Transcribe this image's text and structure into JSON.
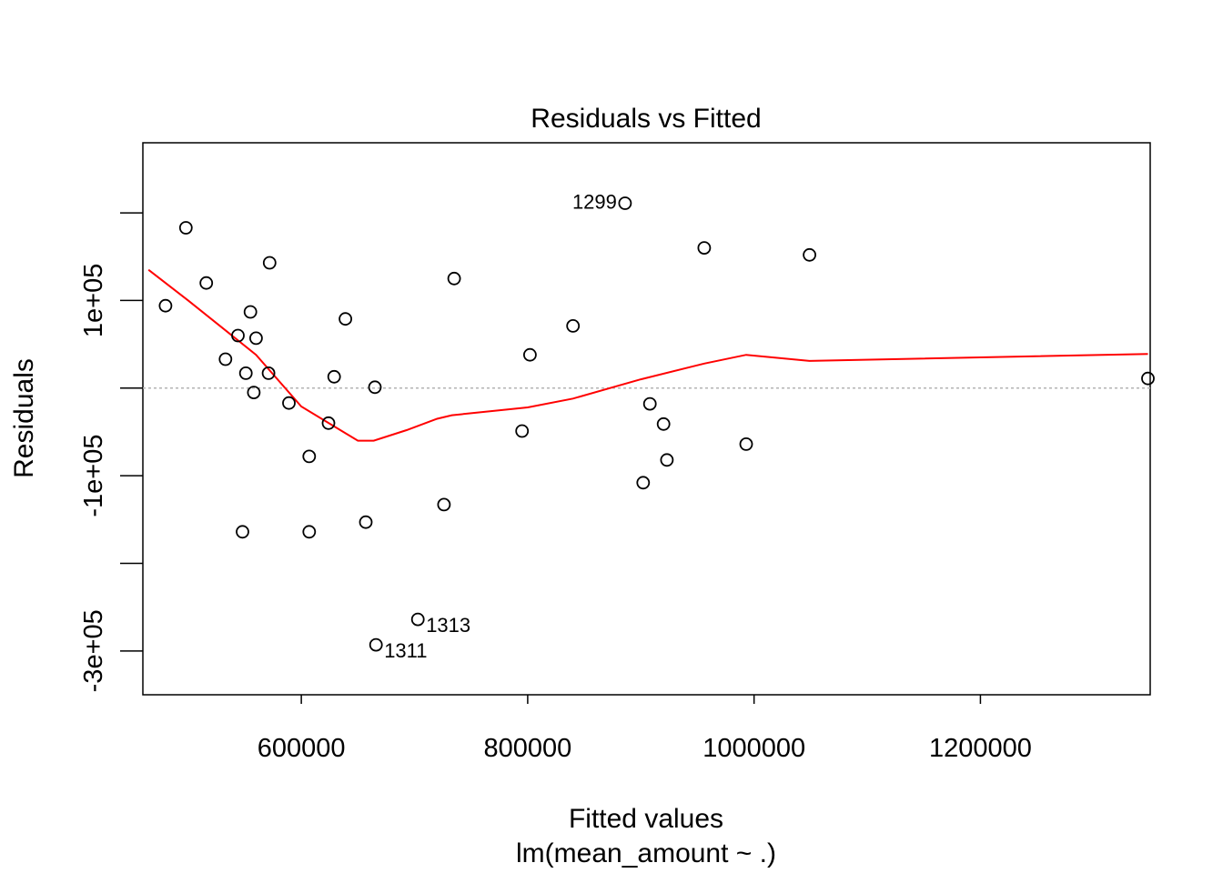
{
  "chart_data": {
    "type": "scatter",
    "title": "Residuals vs Fitted",
    "xlabel": "Fitted values",
    "subtitle": "lm(mean_amount ~ .)",
    "ylabel": "Residuals",
    "xlim": [
      460000,
      1350000
    ],
    "ylim": [
      -350000,
      280000
    ],
    "x_ticks": [
      600000,
      800000,
      1000000,
      1200000
    ],
    "x_tick_labels": [
      "600000",
      "800000",
      "1000000",
      "1200000"
    ],
    "y_ticks": [
      -300000,
      -200000,
      -100000,
      0,
      100000,
      200000
    ],
    "y_tick_labels": {
      "-300000": "-3e+05",
      "-100000": "-1e+05",
      "100000": "1e+05"
    },
    "zero_line": true,
    "points": [
      {
        "x": 480000,
        "y": 94000
      },
      {
        "x": 498000,
        "y": 183000
      },
      {
        "x": 516000,
        "y": 120000
      },
      {
        "x": 533000,
        "y": 33000
      },
      {
        "x": 544000,
        "y": 60000
      },
      {
        "x": 548000,
        "y": -164000
      },
      {
        "x": 551000,
        "y": 17000
      },
      {
        "x": 555000,
        "y": 87000
      },
      {
        "x": 558000,
        "y": -5000
      },
      {
        "x": 560000,
        "y": 57000
      },
      {
        "x": 571000,
        "y": 17000
      },
      {
        "x": 572000,
        "y": 143000
      },
      {
        "x": 589000,
        "y": -17000
      },
      {
        "x": 607000,
        "y": -78000
      },
      {
        "x": 607000,
        "y": -164000
      },
      {
        "x": 624000,
        "y": -40000
      },
      {
        "x": 629000,
        "y": 13000
      },
      {
        "x": 639000,
        "y": 79000
      },
      {
        "x": 657000,
        "y": -153000
      },
      {
        "x": 665000,
        "y": 1000
      },
      {
        "x": 666000,
        "y": -293000,
        "label": "1311"
      },
      {
        "x": 703000,
        "y": -264000,
        "label": "1313"
      },
      {
        "x": 726000,
        "y": -133000
      },
      {
        "x": 735000,
        "y": 125000
      },
      {
        "x": 795000,
        "y": -49000
      },
      {
        "x": 802000,
        "y": 38000
      },
      {
        "x": 840000,
        "y": 71000
      },
      {
        "x": 886000,
        "y": 211000,
        "label": "1299"
      },
      {
        "x": 902000,
        "y": -108000
      },
      {
        "x": 908000,
        "y": -18000
      },
      {
        "x": 920000,
        "y": -41000
      },
      {
        "x": 923000,
        "y": -82000
      },
      {
        "x": 956000,
        "y": 160000
      },
      {
        "x": 993000,
        "y": -64000
      },
      {
        "x": 1049000,
        "y": 152000
      },
      {
        "x": 1348000,
        "y": 11000
      }
    ],
    "series": [
      {
        "color": "#ff0000",
        "x": [
          465000,
          500000,
          530000,
          560000,
          600000,
          650000,
          664000,
          693000,
          720000,
          733000,
          800000,
          840000,
          900000,
          956000,
          993000,
          1049000,
          1348000
        ],
        "y": [
          135000,
          100000,
          69000,
          38000,
          -21000,
          -60000,
          -60000,
          -48000,
          -35000,
          -31000,
          -22000,
          -12000,
          10000,
          28000,
          38000,
          31000,
          39000
        ]
      }
    ],
    "colors": {
      "points": "#000000",
      "smooth": "#ff0000",
      "zero_line": "#b3b3b3"
    }
  }
}
